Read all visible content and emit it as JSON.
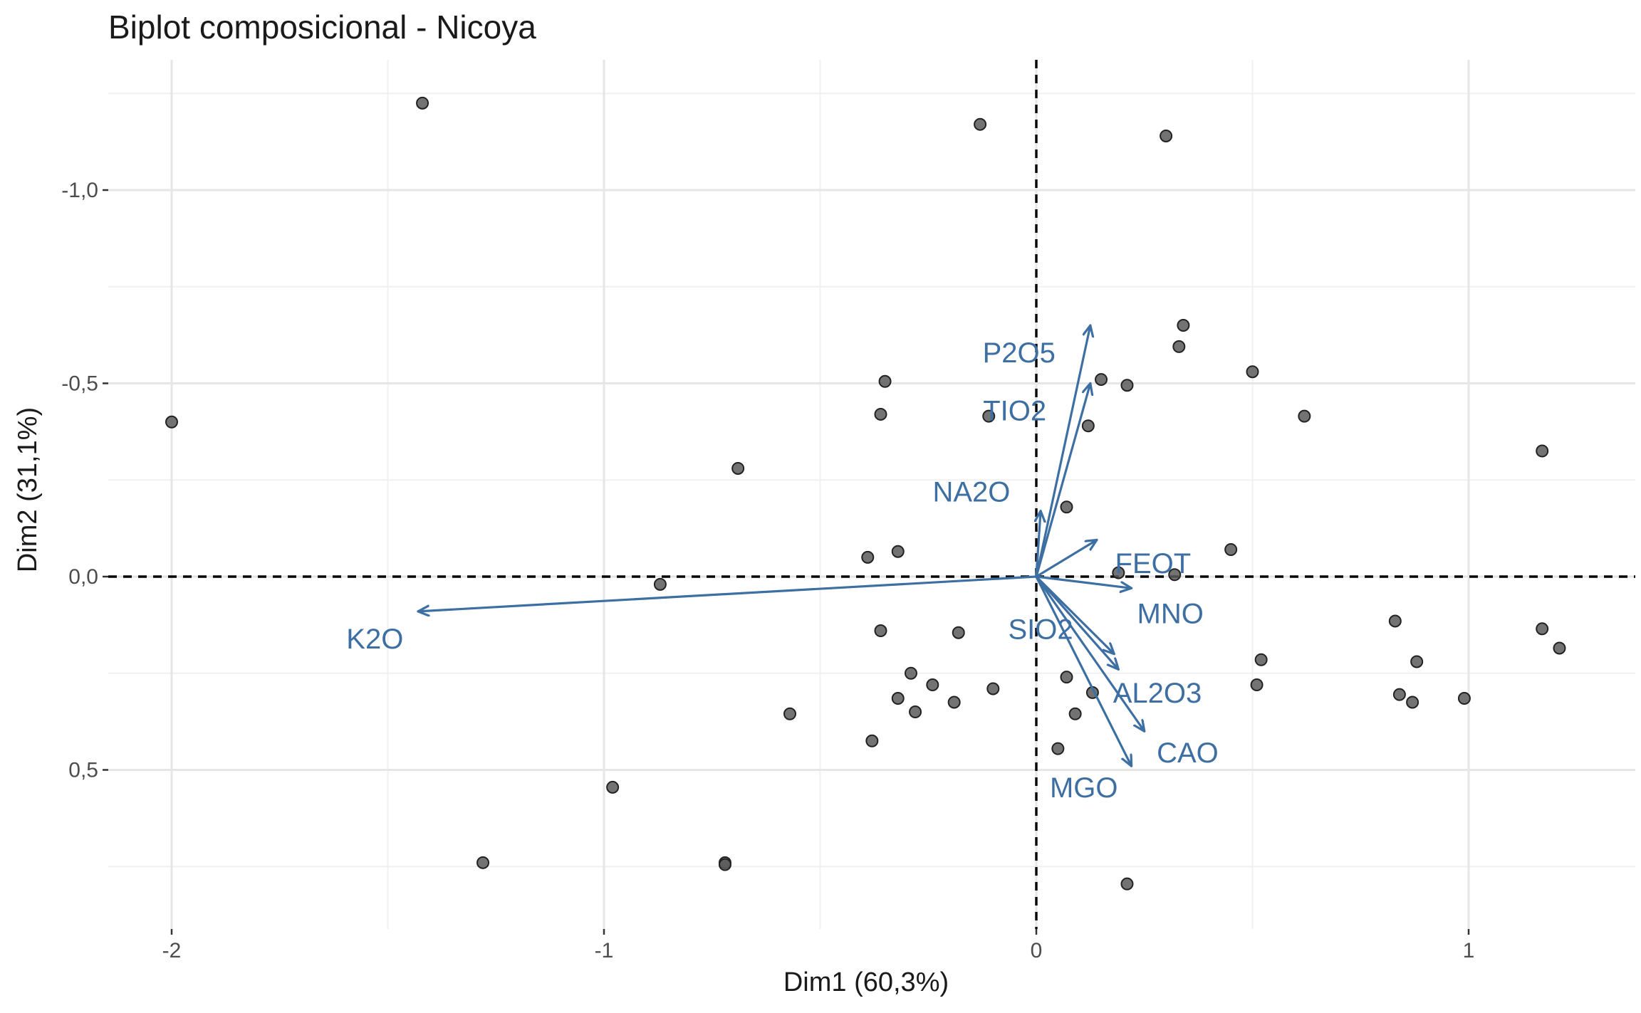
{
  "chart_data": {
    "type": "scatter",
    "title": "Biplot composicional - Nicoya",
    "xlabel": "Dim1 (60,3%)",
    "ylabel": "Dim2 (31,1%)",
    "xlim": [
      -2.14,
      1.36
    ],
    "ylim": [
      -1.33,
      0.92
    ],
    "y_reversed": true,
    "x_ticks": [
      {
        "value": -2,
        "label": "-2"
      },
      {
        "value": -1,
        "label": "-1"
      },
      {
        "value": 0,
        "label": "0"
      },
      {
        "value": 1,
        "label": "1"
      }
    ],
    "y_ticks": [
      {
        "value": -1.0,
        "label": "-1,0"
      },
      {
        "value": -0.5,
        "label": "-0,5"
      },
      {
        "value": 0.0,
        "label": "0,0"
      },
      {
        "value": 0.5,
        "label": "0,5"
      }
    ],
    "reference_lines": {
      "x": 0,
      "y": 0,
      "style": "dashed"
    },
    "grid": true,
    "point_color": "#595959",
    "arrow_color": "#3d6fa3",
    "points": [
      {
        "x": -1.42,
        "y": -1.225
      },
      {
        "x": -0.13,
        "y": -1.17
      },
      {
        "x": 0.3,
        "y": -1.14
      },
      {
        "x": -2.0,
        "y": -0.4
      },
      {
        "x": -0.69,
        "y": -0.28
      },
      {
        "x": -0.35,
        "y": -0.505
      },
      {
        "x": -0.36,
        "y": -0.42
      },
      {
        "x": -0.11,
        "y": -0.415
      },
      {
        "x": 0.15,
        "y": -0.51
      },
      {
        "x": 0.21,
        "y": -0.495
      },
      {
        "x": 0.12,
        "y": -0.39
      },
      {
        "x": 0.34,
        "y": -0.65
      },
      {
        "x": 0.33,
        "y": -0.595
      },
      {
        "x": 0.5,
        "y": -0.53
      },
      {
        "x": 0.62,
        "y": -0.415
      },
      {
        "x": 1.17,
        "y": -0.325
      },
      {
        "x": 0.07,
        "y": -0.18
      },
      {
        "x": -0.39,
        "y": -0.05
      },
      {
        "x": -0.32,
        "y": -0.065
      },
      {
        "x": 0.19,
        "y": -0.01
      },
      {
        "x": 0.32,
        "y": -0.005
      },
      {
        "x": 0.45,
        "y": -0.07
      },
      {
        "x": -0.87,
        "y": 0.02
      },
      {
        "x": -0.36,
        "y": 0.14
      },
      {
        "x": -0.18,
        "y": 0.145
      },
      {
        "x": 0.83,
        "y": 0.115
      },
      {
        "x": 1.17,
        "y": 0.135
      },
      {
        "x": 1.21,
        "y": 0.185
      },
      {
        "x": 0.52,
        "y": 0.215
      },
      {
        "x": 0.88,
        "y": 0.22
      },
      {
        "x": -0.29,
        "y": 0.25
      },
      {
        "x": -0.24,
        "y": 0.28
      },
      {
        "x": -0.1,
        "y": 0.29
      },
      {
        "x": 0.07,
        "y": 0.26
      },
      {
        "x": 0.13,
        "y": 0.3
      },
      {
        "x": 0.51,
        "y": 0.28
      },
      {
        "x": -0.32,
        "y": 0.315
      },
      {
        "x": -0.19,
        "y": 0.325
      },
      {
        "x": -0.28,
        "y": 0.35
      },
      {
        "x": 0.09,
        "y": 0.355
      },
      {
        "x": 0.84,
        "y": 0.305
      },
      {
        "x": 0.87,
        "y": 0.325
      },
      {
        "x": 0.99,
        "y": 0.315
      },
      {
        "x": -0.57,
        "y": 0.355
      },
      {
        "x": -0.38,
        "y": 0.425
      },
      {
        "x": 0.05,
        "y": 0.445
      },
      {
        "x": -0.98,
        "y": 0.545
      },
      {
        "x": -1.28,
        "y": 0.74
      },
      {
        "x": -0.72,
        "y": 0.74
      },
      {
        "x": -0.72,
        "y": 0.745
      },
      {
        "x": 0.21,
        "y": 0.795
      }
    ],
    "variables": [
      {
        "name": "P2O5",
        "x": 0.125,
        "y": -0.65,
        "label_x": -0.04,
        "label_y": -0.58
      },
      {
        "name": "TIO2",
        "x": 0.125,
        "y": -0.5,
        "label_x": -0.05,
        "label_y": -0.43
      },
      {
        "name": "NA2O",
        "x": 0.01,
        "y": -0.17,
        "label_x": -0.15,
        "label_y": -0.22
      },
      {
        "name": "FEOT",
        "x": 0.14,
        "y": -0.095,
        "label_x": 0.27,
        "label_y": -0.035
      },
      {
        "name": "MNO",
        "x": 0.22,
        "y": 0.03,
        "label_x": 0.31,
        "label_y": 0.095
      },
      {
        "name": "SIO2",
        "x": 0.18,
        "y": 0.2,
        "label_x": 0.01,
        "label_y": 0.135
      },
      {
        "name": "AL2O3",
        "x": 0.19,
        "y": 0.24,
        "label_x": 0.28,
        "label_y": 0.3
      },
      {
        "name": "CAO",
        "x": 0.25,
        "y": 0.4,
        "label_x": 0.35,
        "label_y": 0.455
      },
      {
        "name": "MGO",
        "x": 0.22,
        "y": 0.49,
        "label_x": 0.11,
        "label_y": 0.545
      },
      {
        "name": "K2O",
        "x": -1.43,
        "y": 0.09,
        "label_x": -1.53,
        "label_y": 0.16
      }
    ]
  }
}
